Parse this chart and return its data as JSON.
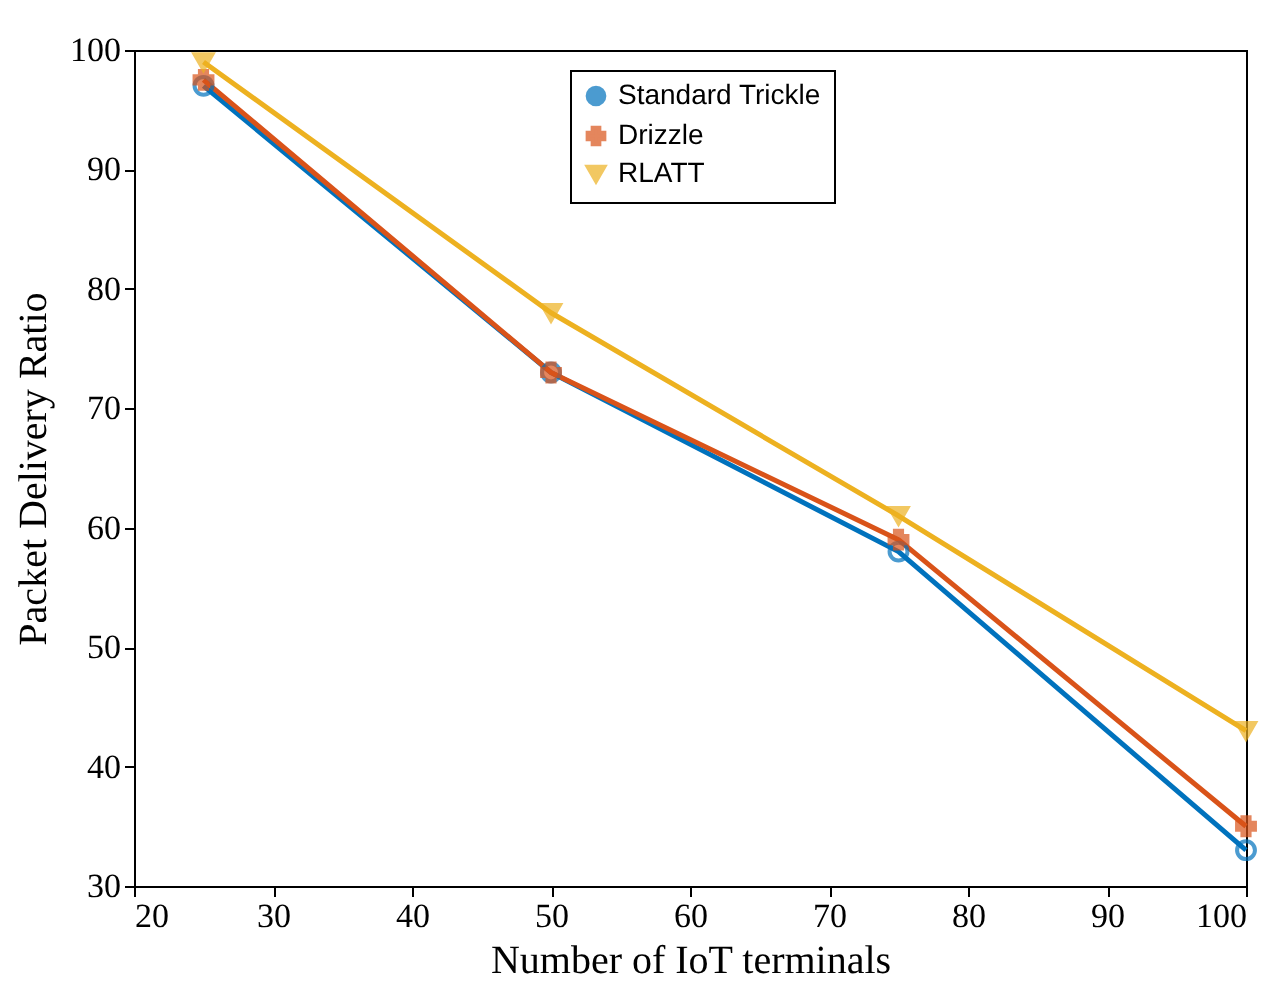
{
  "chart_data": {
    "type": "line",
    "xlabel": "Number of IoT terminals",
    "ylabel": "Packet Delivery Ratio",
    "x": [
      25,
      50,
      75,
      100
    ],
    "series": [
      {
        "name": "Standard Trickle",
        "color": "#0072bd",
        "marker": "circle",
        "values": [
          97,
          73,
          58,
          33
        ]
      },
      {
        "name": "Drizzle",
        "color": "#d95319",
        "marker": "cross",
        "values": [
          97.5,
          73,
          59,
          35
        ]
      },
      {
        "name": "RLATT",
        "color": "#edb120",
        "marker": "triangle",
        "values": [
          99,
          78,
          61,
          43
        ]
      }
    ],
    "xlim": [
      20,
      100
    ],
    "xticks": [
      20,
      30,
      40,
      50,
      60,
      70,
      80,
      90,
      100
    ],
    "ylim": [
      30,
      100
    ],
    "yticks": [
      30,
      40,
      50,
      60,
      70,
      80,
      90,
      100
    ],
    "grid": false,
    "legend": "top",
    "line_style": "solid"
  }
}
